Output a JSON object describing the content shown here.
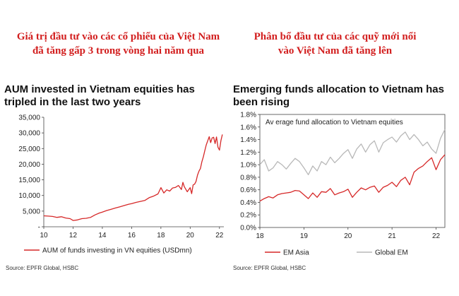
{
  "headlines": {
    "left": "Giá trị đầu tư vào các cổ phiếu của Việt Nam\nđã tăng gấp 3 trong vòng hai năm qua",
    "right": "Phân bổ đầu tư của các quỹ mới nổi\nvào Việt Nam đã tăng lên"
  },
  "colors": {
    "red": "#d62828",
    "grey": "#b8b8b8",
    "headline": "#d21e1e"
  },
  "chart_data": [
    {
      "type": "line",
      "title": "AUM invested in Vietnam equities has\ntripled in the last two years",
      "source": "Source: EPFR Global, HSBC",
      "xlim": [
        10,
        22.3
      ],
      "xticks": [
        10,
        12,
        14,
        16,
        18,
        20,
        22
      ],
      "xtick_labels": [
        "10",
        "12",
        "14",
        "16",
        "18",
        "20",
        "22"
      ],
      "ylim": [
        0,
        35000
      ],
      "yticks": [
        0,
        5000,
        10000,
        15000,
        20000,
        25000,
        30000,
        35000
      ],
      "ytick_labels": [
        "-",
        "5,000",
        "10,000",
        "15,000",
        "20,000",
        "25,000",
        "30,000",
        "35,000"
      ],
      "grid": false,
      "legend": "bottom",
      "series": [
        {
          "name": "AUM of funds investing in VN equities (USDmn)",
          "color": "#d62828",
          "x": [
            10.0,
            10.3,
            10.6,
            10.9,
            11.2,
            11.5,
            11.8,
            12.0,
            12.3,
            12.6,
            12.9,
            13.2,
            13.5,
            13.8,
            14.0,
            14.3,
            14.6,
            14.9,
            15.2,
            15.5,
            15.8,
            16.0,
            16.3,
            16.6,
            16.9,
            17.2,
            17.5,
            17.8,
            18.0,
            18.2,
            18.4,
            18.6,
            18.8,
            19.0,
            19.2,
            19.4,
            19.5,
            19.6,
            19.8,
            20.0,
            20.1,
            20.2,
            20.3,
            20.4,
            20.5,
            20.6,
            20.7,
            20.8,
            20.9,
            21.0,
            21.1,
            21.2,
            21.3,
            21.4,
            21.5,
            21.6,
            21.7,
            21.8,
            21.9,
            22.0,
            22.1,
            22.2
          ],
          "y": [
            3500,
            3400,
            3300,
            3000,
            3200,
            2800,
            2600,
            2000,
            2200,
            2600,
            2700,
            3000,
            3800,
            4400,
            4700,
            5200,
            5600,
            6000,
            6400,
            6800,
            7200,
            7400,
            7800,
            8100,
            8400,
            9300,
            9800,
            10500,
            12500,
            10800,
            11800,
            11400,
            12400,
            12600,
            13200,
            11900,
            14200,
            12800,
            11200,
            12500,
            10600,
            13400,
            13600,
            14500,
            16500,
            17800,
            18600,
            20800,
            22400,
            24300,
            26200,
            27500,
            28800,
            26900,
            28400,
            28600,
            26600,
            28700,
            25400,
            24500,
            27600,
            29500
          ]
        }
      ]
    },
    {
      "type": "line",
      "title": "Emerging funds allocation to Vietnam has\nbeen rising",
      "source": "Source: EPFR Global, HSBC",
      "xlim": [
        18,
        22.2
      ],
      "xticks": [
        18,
        19,
        20,
        21,
        22
      ],
      "xtick_labels": [
        "18",
        "19",
        "20",
        "21",
        "22"
      ],
      "ylim": [
        0,
        1.8
      ],
      "yticks": [
        0,
        0.2,
        0.4,
        0.6,
        0.8,
        1.0,
        1.2,
        1.4,
        1.6,
        1.8
      ],
      "ytick_labels": [
        "0.0%",
        "0.2%",
        "0.4%",
        "0.6%",
        "0.8%",
        "1.0%",
        "1.2%",
        "1.4%",
        "1.6%",
        "1.8%"
      ],
      "annotation": "Av erage fund allocation to Vietnam equities",
      "grid": false,
      "legend": "bottom",
      "series": [
        {
          "name": "EM Asia",
          "color": "#d62828",
          "x": [
            18.0,
            18.1,
            18.2,
            18.3,
            18.4,
            18.5,
            18.6,
            18.7,
            18.8,
            18.9,
            19.0,
            19.1,
            19.2,
            19.3,
            19.4,
            19.5,
            19.6,
            19.7,
            19.8,
            19.9,
            20.0,
            20.1,
            20.2,
            20.3,
            20.4,
            20.5,
            20.6,
            20.7,
            20.8,
            20.9,
            21.0,
            21.1,
            21.2,
            21.3,
            21.4,
            21.5,
            21.6,
            21.7,
            21.8,
            21.9,
            22.0,
            22.1,
            22.2
          ],
          "y": [
            0.42,
            0.46,
            0.49,
            0.47,
            0.52,
            0.54,
            0.55,
            0.56,
            0.59,
            0.58,
            0.52,
            0.46,
            0.55,
            0.48,
            0.57,
            0.56,
            0.62,
            0.52,
            0.55,
            0.57,
            0.61,
            0.48,
            0.56,
            0.63,
            0.6,
            0.64,
            0.66,
            0.56,
            0.64,
            0.67,
            0.72,
            0.65,
            0.75,
            0.8,
            0.68,
            0.88,
            0.94,
            0.98,
            1.05,
            1.11,
            0.92,
            1.08,
            1.16
          ]
        },
        {
          "name": "Global EM",
          "color": "#b8b8b8",
          "x": [
            18.0,
            18.1,
            18.2,
            18.3,
            18.4,
            18.5,
            18.6,
            18.7,
            18.8,
            18.9,
            19.0,
            19.1,
            19.2,
            19.3,
            19.4,
            19.5,
            19.6,
            19.7,
            19.8,
            19.9,
            20.0,
            20.1,
            20.2,
            20.3,
            20.4,
            20.5,
            20.6,
            20.7,
            20.8,
            20.9,
            21.0,
            21.1,
            21.2,
            21.3,
            21.4,
            21.5,
            21.6,
            21.7,
            21.8,
            21.9,
            22.0,
            22.1,
            22.2
          ],
          "y": [
            1.0,
            1.08,
            0.9,
            0.95,
            1.05,
            1.0,
            0.93,
            1.02,
            1.1,
            1.05,
            0.95,
            0.84,
            0.98,
            0.9,
            1.05,
            1.0,
            1.12,
            1.03,
            1.1,
            1.18,
            1.24,
            1.1,
            1.25,
            1.33,
            1.2,
            1.32,
            1.38,
            1.2,
            1.35,
            1.4,
            1.44,
            1.36,
            1.46,
            1.52,
            1.4,
            1.48,
            1.4,
            1.3,
            1.36,
            1.25,
            1.18,
            1.42,
            1.56
          ]
        }
      ]
    }
  ]
}
